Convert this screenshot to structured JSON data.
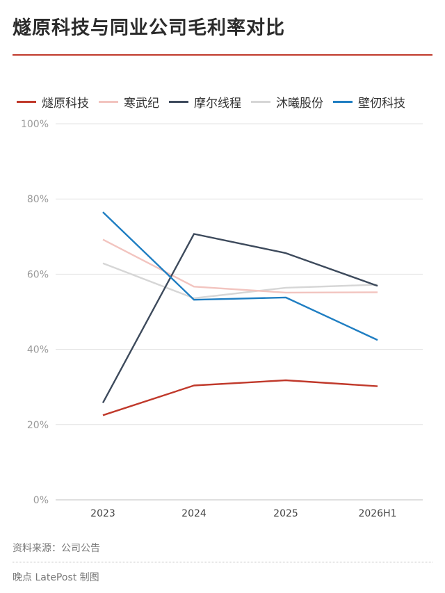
{
  "title": "燧原科技与同业公司毛利率对比",
  "source": "资料来源：公司公告",
  "credit": "晚点 LatePost 制图",
  "chart_data": {
    "type": "line",
    "categories": [
      "2023",
      "2024",
      "2025",
      "2026H1"
    ],
    "y_ticks": [
      "0%",
      "20%",
      "40%",
      "60%",
      "80%",
      "100%"
    ],
    "ylim": [
      0,
      100
    ],
    "grid": true,
    "legend_position": "top",
    "series": [
      {
        "name": "燧原科技",
        "color": "#c0392b",
        "values": [
          22.5,
          30.4,
          31.8,
          30.2
        ]
      },
      {
        "name": "寒武纪",
        "color": "#f2c4bf",
        "values": [
          69.2,
          56.7,
          55.1,
          55.2
        ]
      },
      {
        "name": "摩尔线程",
        "color": "#3d4a5c",
        "values": [
          25.8,
          70.7,
          65.6,
          56.9
        ]
      },
      {
        "name": "沐曦股份",
        "color": "#d6d6d6",
        "values": [
          62.9,
          53.6,
          56.4,
          57.2
        ]
      },
      {
        "name": "壁仞科技",
        "color": "#1f7ec2",
        "values": [
          76.5,
          53.2,
          53.8,
          42.5
        ]
      }
    ]
  }
}
